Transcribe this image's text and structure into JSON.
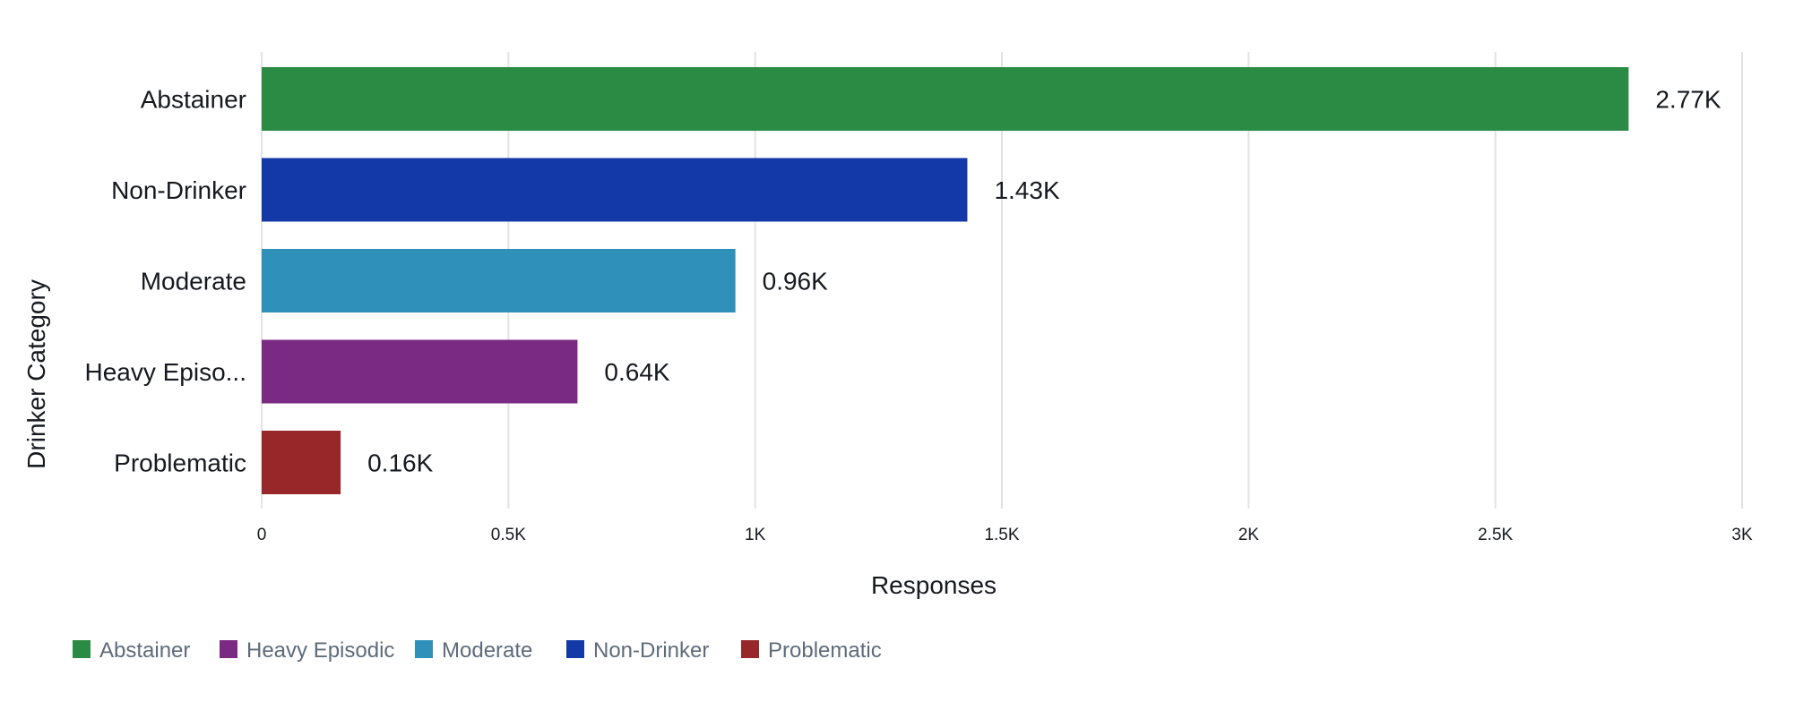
{
  "chart_data": {
    "type": "bar",
    "orientation": "horizontal",
    "categories": [
      "Abstainer",
      "Non-Drinker",
      "Moderate",
      "Heavy Episo...",
      "Problematic"
    ],
    "values": [
      2770,
      1430,
      960,
      640,
      160
    ],
    "data_labels": [
      "2.77K",
      "1.43K",
      "0.96K",
      "0.64K",
      "0.16K"
    ],
    "colors": [
      "#2b8a43",
      "#1339a8",
      "#2f91b9",
      "#7a2a82",
      "#982729"
    ],
    "title": "",
    "xlabel": "Responses",
    "ylabel": "Drinker Category",
    "xlim": [
      0,
      3000
    ],
    "xticks": [
      0,
      500,
      1000,
      1500,
      2000,
      2500,
      3000
    ],
    "xtick_labels": [
      "0",
      "0.5K",
      "1K",
      "1.5K",
      "2K",
      "2.5K",
      "3K"
    ],
    "grid": true,
    "legend_position": "bottom-left",
    "legend": [
      {
        "label": "Abstainer",
        "color": "#2b8a43"
      },
      {
        "label": "Heavy Episodic",
        "color": "#7a2a82"
      },
      {
        "label": "Moderate",
        "color": "#2f91b9"
      },
      {
        "label": "Non-Drinker",
        "color": "#1339a8"
      },
      {
        "label": "Problematic",
        "color": "#982729"
      }
    ]
  }
}
